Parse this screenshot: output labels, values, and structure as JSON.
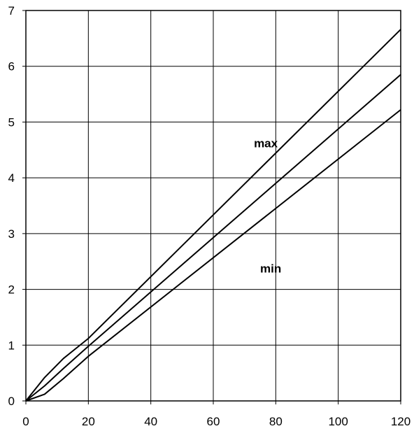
{
  "chart_data": {
    "type": "line",
    "title": "",
    "xlabel": "",
    "ylabel": "",
    "xlim": [
      0,
      120
    ],
    "ylim": [
      0,
      7
    ],
    "x_ticks": [
      0,
      20,
      40,
      60,
      80,
      100,
      120
    ],
    "y_ticks": [
      0,
      1,
      2,
      3,
      4,
      5,
      6,
      7
    ],
    "grid": true,
    "legend": "none",
    "line_color": "#000000",
    "series": [
      {
        "x": [
          0,
          6,
          12,
          20,
          120
        ],
        "y": [
          0,
          0.42,
          0.76,
          1.12,
          6.66
        ]
      },
      {
        "x": [
          0,
          6,
          12,
          20,
          120
        ],
        "y": [
          0,
          0.27,
          0.58,
          0.98,
          5.85
        ]
      },
      {
        "x": [
          0,
          6,
          12,
          20,
          120
        ],
        "y": [
          0,
          0.12,
          0.4,
          0.8,
          5.22
        ]
      }
    ],
    "annotations": [
      {
        "text": "max",
        "x": 73,
        "y": 4.55
      },
      {
        "text": "min",
        "x": 75,
        "y": 2.3
      }
    ]
  }
}
